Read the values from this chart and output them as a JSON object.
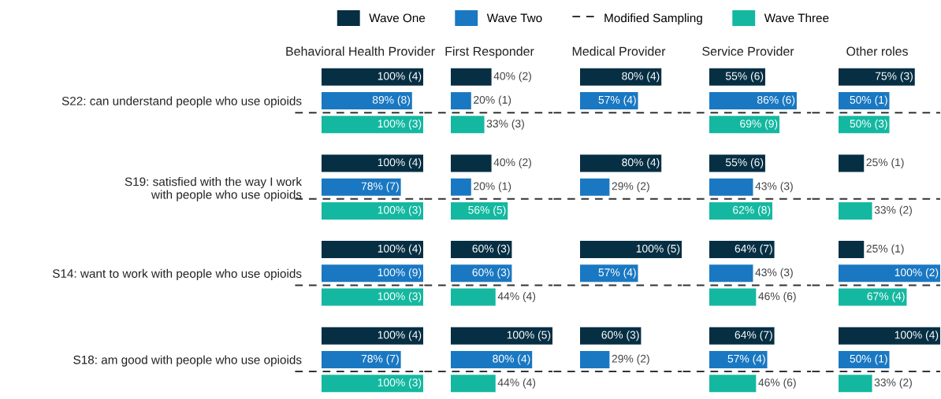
{
  "chart_data": [
    {
      "type": "bar",
      "orientation": "horizontal",
      "title": "Behavioral Health Provider",
      "legend": "top",
      "xlim": [
        0,
        100
      ],
      "tick_labels": "y",
      "categories": [
        "S22: can understand people who use opioids",
        "S19: satisfied with the way I work\nwith people who use opioids",
        "S14: want to work with people who use opioids",
        "S18: am good with people who use opioids"
      ],
      "series": [
        {
          "name": "Wave One",
          "color": "#072f43",
          "values": [
            100,
            100,
            100,
            100
          ],
          "value_labels": [
            "100% (4)",
            "100% (4)",
            "100% (4)",
            "100% (4)"
          ]
        },
        {
          "name": "Wave Two",
          "color": "#1a78c2",
          "values": [
            89,
            78,
            100,
            78
          ],
          "value_labels": [
            "89% (8)",
            "78% (7)",
            "100% (9)",
            "78% (7)"
          ]
        },
        {
          "name": "Wave Three",
          "color": "#14b8a0",
          "values": [
            100,
            100,
            100,
            100
          ],
          "value_labels": [
            "100% (3)",
            "100% (3)",
            "100% (3)",
            "100% (3)"
          ]
        }
      ],
      "ref_lines": [
        {
          "axis": "y",
          "value": "S22: can understand people who use opioids",
          "label": "Modified Sampling",
          "line_style": "dashed",
          "color": "#333333"
        },
        {
          "axis": "y",
          "value": "S19: satisfied with the way I work\nwith people who use opioids",
          "line_style": "dashed",
          "color": "#333333"
        },
        {
          "axis": "y",
          "value": "S14: want to work with people who use opioids",
          "line_style": "dashed",
          "color": "#333333"
        },
        {
          "axis": "y",
          "value": "S18: am good with people who use opioids",
          "line_style": "dashed",
          "color": "#333333"
        }
      ]
    },
    {
      "type": "bar",
      "orientation": "horizontal",
      "title": "First Responder",
      "xlim": [
        0,
        100
      ],
      "tick_labels": false,
      "categories": [
        null,
        null,
        null,
        null
      ],
      "series": [
        {
          "color": "#072f43",
          "values": [
            40,
            40,
            60,
            100
          ],
          "value_labels": [
            "40% (2)",
            "40% (2)",
            "60% (3)",
            "100% (5)"
          ]
        },
        {
          "color": "#1a78c2",
          "values": [
            20,
            20,
            60,
            80
          ],
          "value_labels": [
            "20% (1)",
            "20% (1)",
            "60% (3)",
            "80% (4)"
          ]
        },
        {
          "color": "#14b8a0",
          "values": [
            33,
            56,
            44,
            44
          ],
          "value_labels": [
            "33% (3)",
            "56% (5)",
            "44% (4)",
            "44% (4)"
          ]
        }
      ]
    },
    {
      "type": "bar",
      "orientation": "horizontal",
      "title": "Medical Provider",
      "xlim": [
        0,
        100
      ],
      "tick_labels": false,
      "categories": [
        null,
        null,
        null,
        null
      ],
      "series": [
        {
          "color": "#072f43",
          "values": [
            80,
            80,
            100,
            60
          ],
          "value_labels": [
            "80% (4)",
            "80% (4)",
            "100% (5)",
            "60% (3)"
          ]
        },
        {
          "color": "#1a78c2",
          "values": [
            57,
            29,
            57,
            29
          ],
          "value_labels": [
            "57% (4)",
            "29% (2)",
            "57% (4)",
            "29% (2)"
          ]
        }
      ]
    },
    {
      "type": "bar",
      "orientation": "horizontal",
      "title": "Service Provider",
      "xlim": [
        0,
        100
      ],
      "tick_labels": false,
      "categories": [
        null,
        null,
        null,
        null
      ],
      "series": [
        {
          "color": "#072f43",
          "values": [
            55,
            55,
            64,
            64
          ],
          "value_labels": [
            "55% (6)",
            "55% (6)",
            "64% (7)",
            "64% (7)"
          ]
        },
        {
          "color": "#1a78c2",
          "values": [
            86,
            43,
            43,
            57
          ],
          "value_labels": [
            "86% (6)",
            "43% (3)",
            "43% (3)",
            "57% (4)"
          ]
        },
        {
          "color": "#14b8a0",
          "values": [
            69,
            62,
            46,
            46
          ],
          "value_labels": [
            "69% (9)",
            "62% (8)",
            "46% (6)",
            "46% (6)"
          ]
        }
      ]
    },
    {
      "type": "bar",
      "orientation": "horizontal",
      "title": "Other roles",
      "xlim": [
        0,
        100
      ],
      "tick_labels": false,
      "categories": [
        null,
        null,
        null,
        null
      ],
      "series": [
        {
          "color": "#072f43",
          "values": [
            75,
            25,
            25,
            100
          ],
          "value_labels": [
            "75% (3)",
            "25% (1)",
            "25% (1)",
            "100% (4)"
          ]
        },
        {
          "color": "#1a78c2",
          "values": [
            50,
            null,
            100,
            50
          ],
          "value_labels": [
            "50% (1)",
            null,
            "100% (2)",
            "50% (1)"
          ]
        },
        {
          "color": "#14b8a0",
          "values": [
            50,
            33,
            67,
            33
          ],
          "value_labels": [
            "50% (3)",
            "33% (2)",
            "67% (4)",
            "33% (2)"
          ]
        }
      ]
    }
  ]
}
